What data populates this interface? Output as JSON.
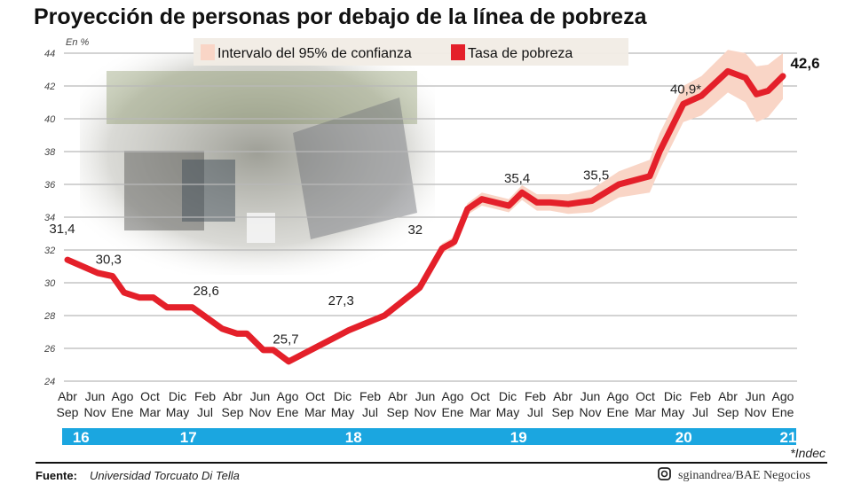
{
  "chart_data": {
    "type": "line",
    "title": "Proyección de personas por debajo de la línea de pobreza",
    "ylabel": "En %",
    "ylim": [
      24,
      44
    ],
    "yticks": [
      24,
      26,
      28,
      30,
      32,
      34,
      36,
      38,
      40,
      42,
      44
    ],
    "grid": true,
    "legend_placement": "top-center",
    "categories_top": [
      "Abr",
      "Jun",
      "Ago",
      "Oct",
      "Dic",
      "Feb",
      "Abr",
      "Jun",
      "Ago",
      "Oct",
      "Dic",
      "Feb",
      "Abr",
      "Jun",
      "Ago",
      "Oct",
      "Dic",
      "Feb",
      "Abr",
      "Jun",
      "Ago",
      "Oct",
      "Dic",
      "Feb",
      "Abr",
      "Jun",
      "Ago"
    ],
    "categories_bottom": [
      "Sep",
      "Nov",
      "Ene",
      "Mar",
      "May",
      "Jul",
      "Sep",
      "Nov",
      "Ene",
      "Mar",
      "May",
      "Jul",
      "Sep",
      "Nov",
      "Ene",
      "Mar",
      "May",
      "Jul",
      "Sep",
      "Nov",
      "Ene",
      "Mar",
      "May",
      "Jul",
      "Sep",
      "Nov",
      "Ene"
    ],
    "years": [
      {
        "label": "16",
        "at": 0.3
      },
      {
        "label": "17",
        "at": 4.2
      },
      {
        "label": "18",
        "at": 10.2
      },
      {
        "label": "19",
        "at": 16.2
      },
      {
        "label": "20",
        "at": 22.2
      },
      {
        "label": "21",
        "at": 26.0
      }
    ],
    "series": [
      {
        "name": "Tasa de pobreza",
        "color": "#e4202a",
        "points": [
          [
            0,
            31.4
          ],
          [
            1.1,
            30.6
          ],
          [
            1.64,
            30.4
          ],
          [
            2.06,
            29.4
          ],
          [
            2.62,
            29.1
          ],
          [
            3.12,
            29.1
          ],
          [
            3.62,
            28.5
          ],
          [
            4.54,
            28.5
          ],
          [
            5.62,
            27.2
          ],
          [
            6.16,
            26.9
          ],
          [
            6.52,
            26.9
          ],
          [
            7.12,
            25.9
          ],
          [
            7.48,
            25.9
          ],
          [
            8.04,
            25.2
          ],
          [
            10.22,
            27.1
          ],
          [
            11.52,
            28.0
          ],
          [
            12.8,
            29.7
          ],
          [
            13.62,
            32.1
          ],
          [
            14.06,
            32.5
          ],
          [
            14.54,
            34.5
          ],
          [
            15.06,
            35.1
          ],
          [
            16.04,
            34.7
          ],
          [
            16.52,
            35.5
          ],
          [
            17.06,
            34.9
          ],
          [
            17.54,
            34.9
          ],
          [
            18.2,
            34.8
          ],
          [
            19.06,
            35.0
          ],
          [
            20.04,
            36.0
          ],
          [
            21.16,
            36.5
          ],
          [
            21.52,
            38.0
          ],
          [
            22.38,
            40.9
          ],
          [
            23.04,
            41.4
          ],
          [
            24.0,
            42.9
          ],
          [
            24.64,
            42.5
          ],
          [
            25.04,
            41.5
          ],
          [
            25.46,
            41.7
          ],
          [
            26.0,
            42.6
          ]
        ]
      },
      {
        "name": "Intervalo del 95% de confianza",
        "color": "#f9d5c6",
        "half_width": [
          0.2,
          0.2,
          0.2,
          0.2,
          0.2,
          0.2,
          0.2,
          0.2,
          0.2,
          0.2,
          0.2,
          0.2,
          0.2,
          0.2,
          0.2,
          0.2,
          0.25,
          0.3,
          0.3,
          0.35,
          0.4,
          0.4,
          0.45,
          0.5,
          0.5,
          0.6,
          0.7,
          0.8,
          1.0,
          1.1,
          1.1,
          1.2,
          1.3,
          1.5,
          1.7,
          1.6,
          1.4
        ]
      }
    ],
    "annotations": [
      {
        "text": "31,4",
        "at": 0,
        "value": 31.4
      },
      {
        "text": "30,3",
        "at": 1.75,
        "value": 30.3
      },
      {
        "text": "28,6",
        "at": 5.2,
        "value": 28.6
      },
      {
        "text": "25,7",
        "at": 8.0,
        "value": 25.7
      },
      {
        "text": "27,3",
        "at": 10.2,
        "value": 27.3
      },
      {
        "text": "32",
        "at": 12.8,
        "value": 32
      },
      {
        "text": "35,4",
        "at": 16.6,
        "value": 35.4
      },
      {
        "text": "35,5",
        "at": 19.6,
        "value": 35.5
      },
      {
        "text": "40,9*",
        "at": 22.5,
        "value": 40.9
      },
      {
        "text": "42,6",
        "at": 26.0,
        "value": 42.6,
        "bold": true
      }
    ]
  },
  "legend": {
    "ci_label": "Intervalo del 95% de confianza",
    "rate_label": "Tasa de pobreza"
  },
  "footer": {
    "source_label": "Fuente:",
    "source": "Universidad Torcuato Di Tella",
    "note": "*Indec",
    "credit": "sginandrea/BAE Negocios",
    "credit_icon": "instagram-icon",
    "band_color": "#1ba6e0"
  }
}
